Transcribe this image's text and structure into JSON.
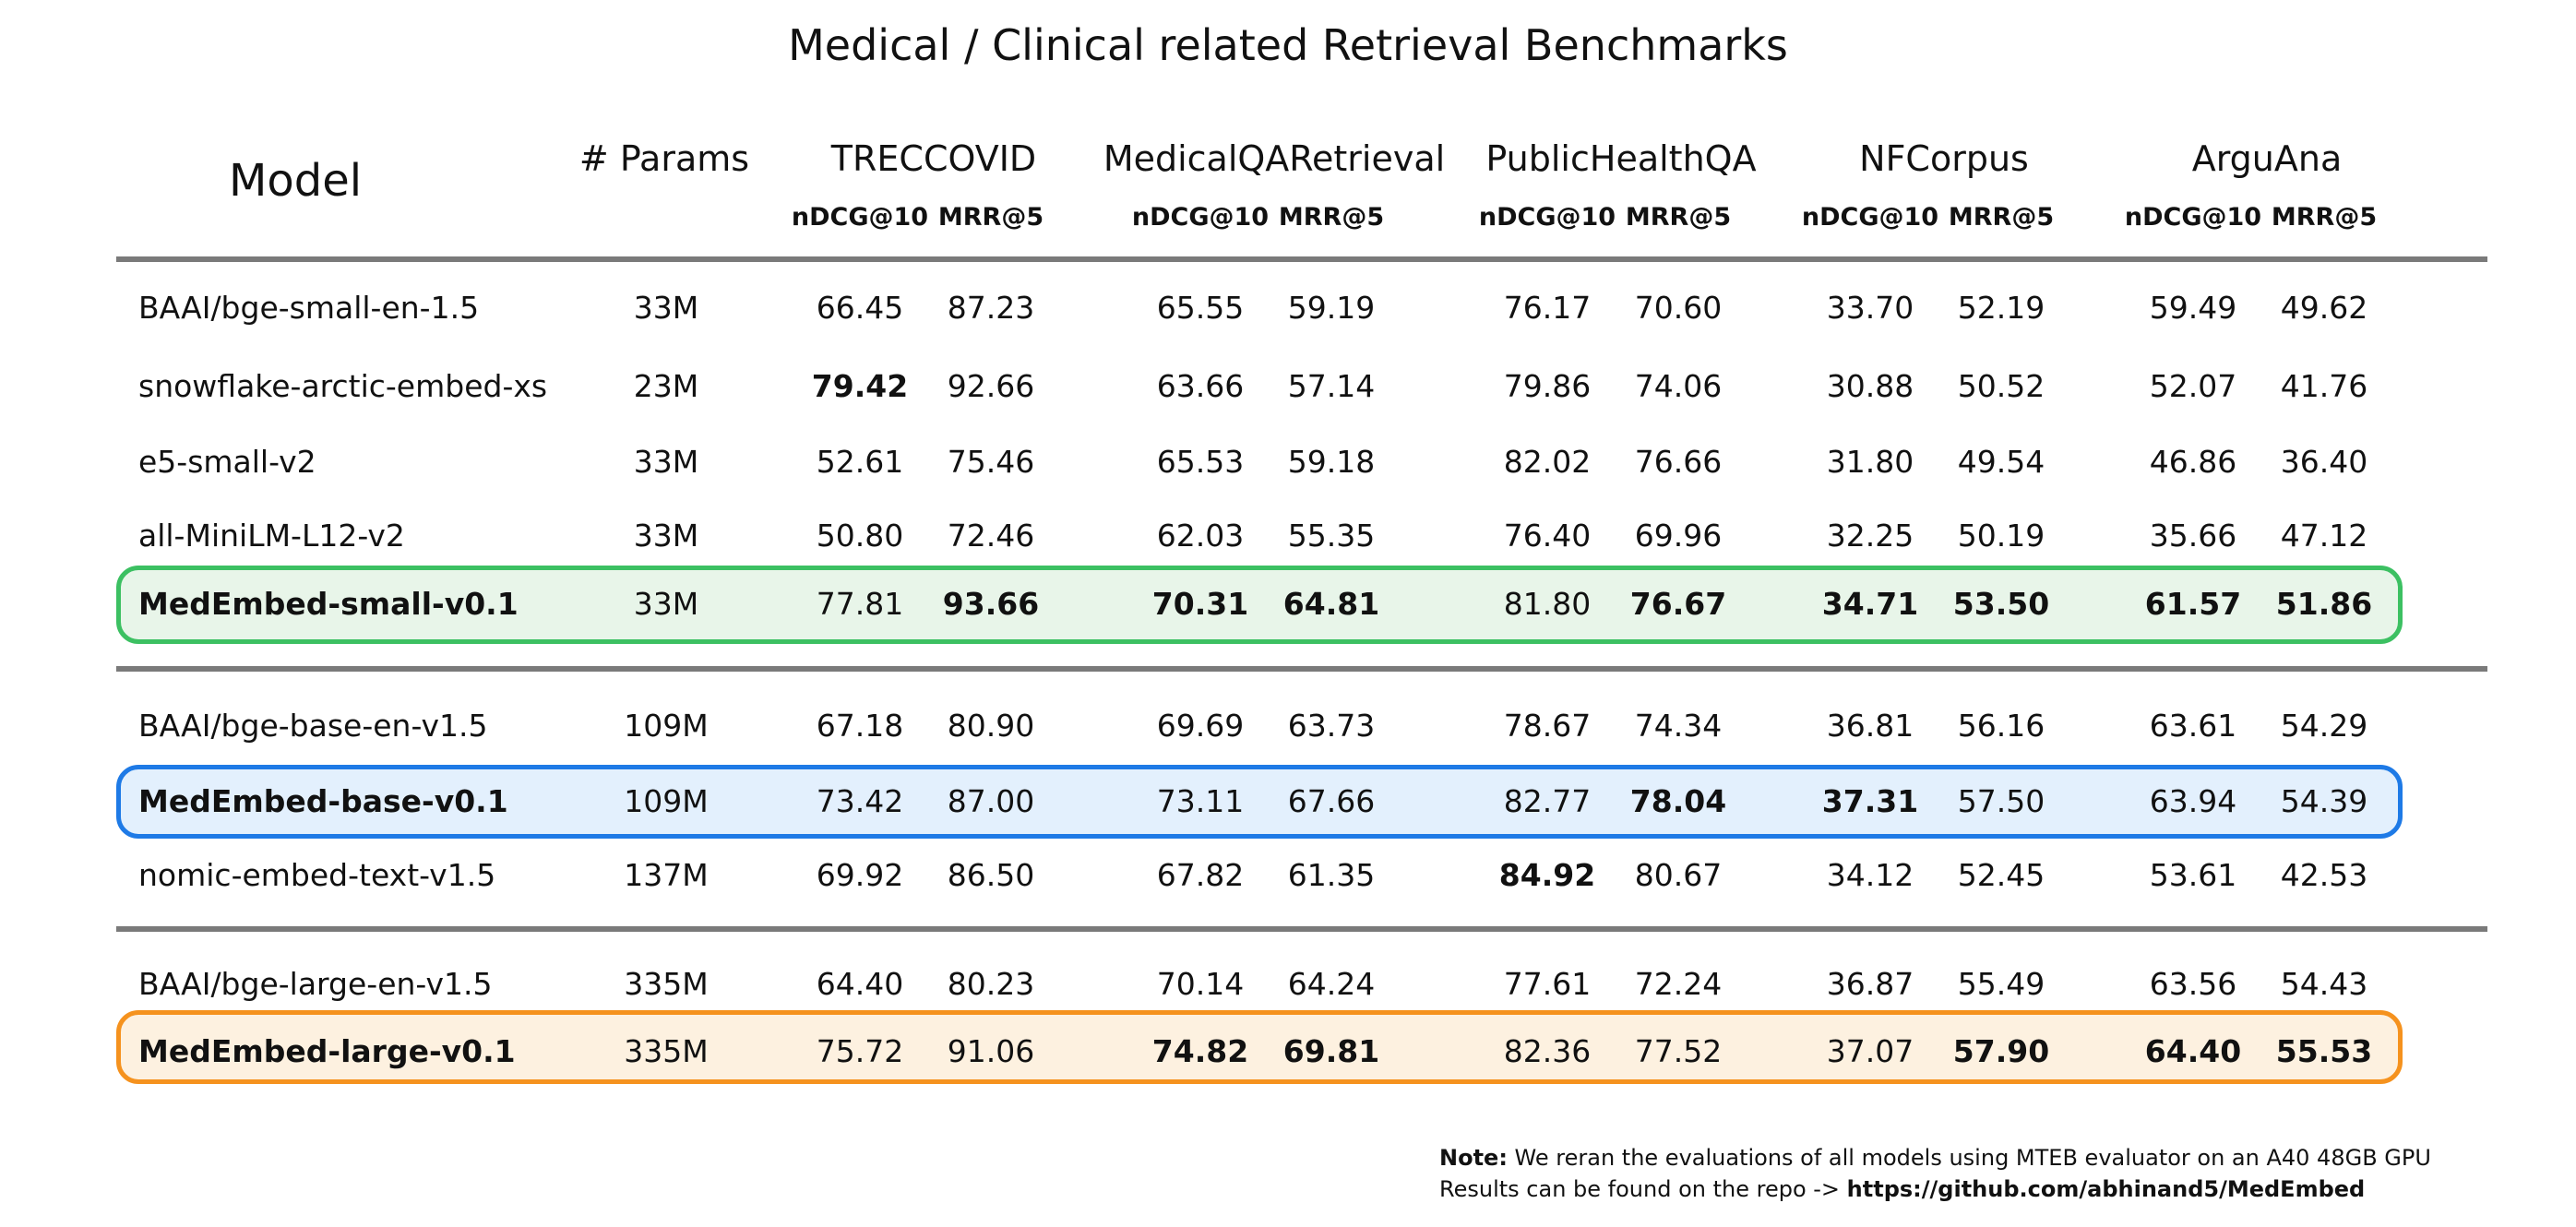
{
  "title": "Medical / Clinical related Retrieval Benchmarks",
  "headers": {
    "model": "Model",
    "params": "# Params",
    "groups": [
      "TRECCOVID",
      "MedicalQARetrieval",
      "PublicHealthQA",
      "NFCorpus",
      "ArguAna"
    ],
    "sub": [
      "nDCG@10",
      "MRR@5"
    ]
  },
  "rows": [
    {
      "model": "BAAI/bge-small-en-1.5",
      "params": "33M",
      "values": [
        "66.45",
        "87.23",
        "65.55",
        "59.19",
        "76.17",
        "70.60",
        "33.70",
        "52.19",
        "59.49",
        "49.62"
      ],
      "bold": [],
      "highlight": false
    },
    {
      "model": "snowflake-arctic-embed-xs",
      "params": "23M",
      "values": [
        "79.42",
        "92.66",
        "63.66",
        "57.14",
        "79.86",
        "74.06",
        "30.88",
        "50.52",
        "52.07",
        "41.76"
      ],
      "bold": [
        0
      ],
      "highlight": false
    },
    {
      "model": "e5-small-v2",
      "params": "33M",
      "values": [
        "52.61",
        "75.46",
        "65.53",
        "59.18",
        "82.02",
        "76.66",
        "31.80",
        "49.54",
        "46.86",
        "36.40"
      ],
      "bold": [],
      "highlight": false
    },
    {
      "model": "all-MiniLM-L12-v2",
      "params": "33M",
      "values": [
        "50.80",
        "72.46",
        "62.03",
        "55.35",
        "76.40",
        "69.96",
        "32.25",
        "50.19",
        "35.66",
        "47.12"
      ],
      "bold": [],
      "highlight": false
    },
    {
      "model": "MedEmbed-small-v0.1",
      "params": "33M",
      "values": [
        "77.81",
        "93.66",
        "70.31",
        "64.81",
        "81.80",
        "76.67",
        "34.71",
        "53.50",
        "61.57",
        "51.86"
      ],
      "bold": [
        1,
        2,
        3,
        5,
        6,
        7,
        8,
        9
      ],
      "highlight": true,
      "accent": "#3cc062",
      "fill": "#e8f5e9"
    },
    {
      "model": "BAAI/bge-base-en-v1.5",
      "params": "109M",
      "values": [
        "67.18",
        "80.90",
        "69.69",
        "63.73",
        "78.67",
        "74.34",
        "36.81",
        "56.16",
        "63.61",
        "54.29"
      ],
      "bold": [],
      "highlight": false
    },
    {
      "model": "MedEmbed-base-v0.1",
      "params": "109M",
      "values": [
        "73.42",
        "87.00",
        "73.11",
        "67.66",
        "82.77",
        "78.04",
        "37.31",
        "57.50",
        "63.94",
        "54.39"
      ],
      "bold": [
        5,
        6
      ],
      "highlight": true,
      "accent": "#1e7ae6",
      "fill": "#e3f0fd"
    },
    {
      "model": "nomic-embed-text-v1.5",
      "params": "137M",
      "values": [
        "69.92",
        "86.50",
        "67.82",
        "61.35",
        "84.92",
        "80.67",
        "34.12",
        "52.45",
        "53.61",
        "42.53"
      ],
      "bold": [
        4
      ],
      "highlight": false
    },
    {
      "model": "BAAI/bge-large-en-v1.5",
      "params": "335M",
      "values": [
        "64.40",
        "80.23",
        "70.14",
        "64.24",
        "77.61",
        "72.24",
        "36.87",
        "55.49",
        "63.56",
        "54.43"
      ],
      "bold": [],
      "highlight": false
    },
    {
      "model": "MedEmbed-large-v0.1",
      "params": "335M",
      "values": [
        "75.72",
        "91.06",
        "74.82",
        "69.81",
        "82.36",
        "77.52",
        "37.07",
        "57.90",
        "64.40",
        "55.53"
      ],
      "bold": [
        2,
        3,
        7,
        8,
        9
      ],
      "highlight": true,
      "accent": "#f5921e",
      "fill": "#fdf1e0"
    }
  ],
  "note": {
    "label": "Note:",
    "line1": " We reran the evaluations of all models using MTEB evaluator on an A40 48GB GPU",
    "line2_prefix": "Results can be found on the repo -> ",
    "line2_link": "https://github.com/abhinand5/MedEmbed"
  },
  "chart_data": {
    "type": "table",
    "title": "Medical / Clinical related Retrieval Benchmarks",
    "columns": [
      "Model",
      "# Params",
      "TRECCOVID nDCG@10",
      "TRECCOVID MRR@5",
      "MedicalQARetrieval nDCG@10",
      "MedicalQARetrieval MRR@5",
      "PublicHealthQA nDCG@10",
      "PublicHealthQA MRR@5",
      "NFCorpus nDCG@10",
      "NFCorpus MRR@5",
      "ArguAna nDCG@10",
      "ArguAna MRR@5"
    ],
    "rows": [
      [
        "BAAI/bge-small-en-1.5",
        "33M",
        66.45,
        87.23,
        65.55,
        59.19,
        76.17,
        70.6,
        33.7,
        52.19,
        59.49,
        49.62
      ],
      [
        "snowflake-arctic-embed-xs",
        "23M",
        79.42,
        92.66,
        63.66,
        57.14,
        79.86,
        74.06,
        30.88,
        50.52,
        52.07,
        41.76
      ],
      [
        "e5-small-v2",
        "33M",
        52.61,
        75.46,
        65.53,
        59.18,
        82.02,
        76.66,
        31.8,
        49.54,
        46.86,
        36.4
      ],
      [
        "all-MiniLM-L12-v2",
        "33M",
        50.8,
        72.46,
        62.03,
        55.35,
        76.4,
        69.96,
        32.25,
        50.19,
        35.66,
        47.12
      ],
      [
        "MedEmbed-small-v0.1",
        "33M",
        77.81,
        93.66,
        70.31,
        64.81,
        81.8,
        76.67,
        34.71,
        53.5,
        61.57,
        51.86
      ],
      [
        "BAAI/bge-base-en-v1.5",
        "109M",
        67.18,
        80.9,
        69.69,
        63.73,
        78.67,
        74.34,
        36.81,
        56.16,
        63.61,
        54.29
      ],
      [
        "MedEmbed-base-v0.1",
        "109M",
        73.42,
        87.0,
        73.11,
        67.66,
        82.77,
        78.04,
        37.31,
        57.5,
        63.94,
        54.39
      ],
      [
        "nomic-embed-text-v1.5",
        "137M",
        69.92,
        86.5,
        67.82,
        61.35,
        84.92,
        80.67,
        34.12,
        52.45,
        53.61,
        42.53
      ],
      [
        "BAAI/bge-large-en-v1.5",
        "335M",
        64.4,
        80.23,
        70.14,
        64.24,
        77.61,
        72.24,
        36.87,
        55.49,
        63.56,
        54.43
      ],
      [
        "MedEmbed-large-v0.1",
        "335M",
        75.72,
        91.06,
        74.82,
        69.81,
        82.36,
        77.52,
        37.07,
        57.9,
        64.4,
        55.53
      ]
    ]
  }
}
